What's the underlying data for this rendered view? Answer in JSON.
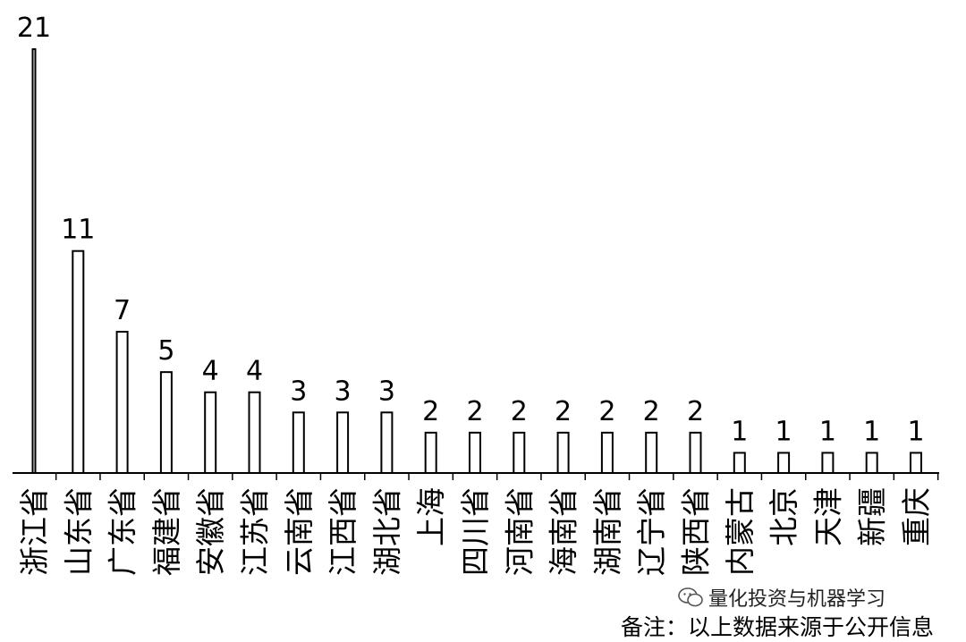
{
  "chart_data": {
    "type": "bar",
    "categories": [
      "浙江省",
      "山东省",
      "广东省",
      "福建省",
      "安徽省",
      "江苏省",
      "云南省",
      "江西省",
      "湖北省",
      "上海",
      "四川省",
      "河南省",
      "海南省",
      "湖南省",
      "辽宁省",
      "陕西省",
      "内蒙古",
      "北京",
      "天津",
      "新疆",
      "重庆"
    ],
    "values": [
      21,
      11,
      7,
      5,
      4,
      4,
      3,
      3,
      3,
      2,
      2,
      2,
      2,
      2,
      2,
      2,
      1,
      1,
      1,
      1,
      1
    ],
    "title": "",
    "xlabel": "",
    "ylabel": "",
    "ylim": [
      0,
      21
    ],
    "grid": false,
    "bar_color": "#ffffff",
    "bar_edge_color": "#000000"
  },
  "watermark": {
    "text": "量化投资与机器学习",
    "icon": "wechat-icon"
  },
  "note": "备注：以上数据来源于公开信息"
}
